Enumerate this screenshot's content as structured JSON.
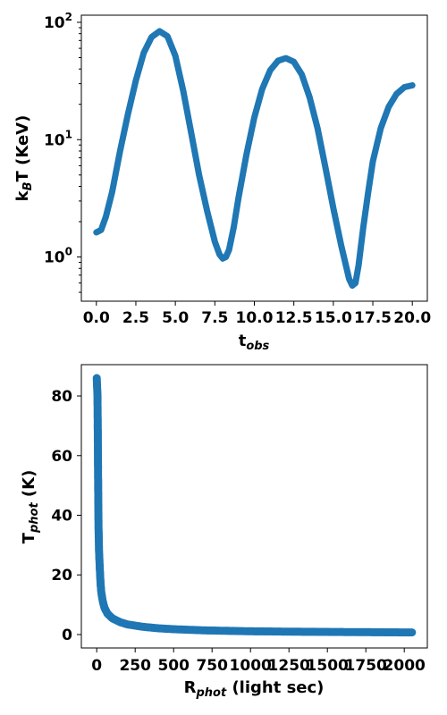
{
  "chart_data": [
    {
      "type": "line",
      "title": "",
      "xlabel_main": "t",
      "xlabel_sub": "obs",
      "ylabel_pre": "k",
      "ylabel_sub": "B",
      "ylabel_post": "T (KeV)",
      "yscale": "log",
      "xlim": [
        -0.95,
        20.95
      ],
      "ylim": [
        0.42,
        115
      ],
      "xticks": [
        {
          "value": 0.0,
          "label": "0.0"
        },
        {
          "value": 2.5,
          "label": "2.5"
        },
        {
          "value": 5.0,
          "label": "5.0"
        },
        {
          "value": 7.5,
          "label": "7.5"
        },
        {
          "value": 10.0,
          "label": "10.0"
        },
        {
          "value": 12.5,
          "label": "12.5"
        },
        {
          "value": 15.0,
          "label": "15.0"
        },
        {
          "value": 17.5,
          "label": "17.5"
        },
        {
          "value": 20.0,
          "label": "20.0"
        }
      ],
      "yticks": [
        {
          "value": 1,
          "base": "10",
          "exp": "0"
        },
        {
          "value": 10,
          "base": "10",
          "exp": "1"
        },
        {
          "value": 100,
          "base": "10",
          "exp": "2"
        }
      ],
      "color": "#1f77b4",
      "series": [
        {
          "x": [
            0.0,
            0.3,
            0.6,
            1.0,
            1.5,
            2.0,
            2.5,
            3.0,
            3.5,
            4.0,
            4.5,
            5.0,
            5.5,
            6.0,
            6.5,
            7.0,
            7.5,
            7.8,
            8.0,
            8.2,
            8.4,
            8.7,
            9.0,
            9.5,
            10.0,
            10.5,
            11.0,
            11.5,
            12.0,
            12.5,
            13.0,
            13.5,
            14.0,
            14.5,
            15.0,
            15.5,
            16.0,
            16.2,
            16.4,
            16.6,
            16.9,
            17.2,
            17.5,
            18.0,
            18.5,
            19.0,
            19.5,
            20.0
          ],
          "y": [
            1.62,
            1.7,
            2.2,
            3.6,
            8.0,
            16.5,
            32,
            55,
            75,
            84,
            76,
            52,
            26,
            11.5,
            5.0,
            2.5,
            1.35,
            1.05,
            0.97,
            1.0,
            1.15,
            1.8,
            3.2,
            7.5,
            15.5,
            27,
            39,
            47,
            49.5,
            46,
            36,
            23,
            12.5,
            5.8,
            2.6,
            1.25,
            0.65,
            0.57,
            0.6,
            0.85,
            1.8,
            3.5,
            6.5,
            12.5,
            19,
            24.5,
            28,
            29
          ]
        }
      ]
    },
    {
      "type": "scatter",
      "title": "",
      "xlabel_main": "R",
      "xlabel_sub": "phot",
      "xlabel_post": " (light sec)",
      "ylabel_main": "T",
      "ylabel_sub": "phot",
      "ylabel_post": " (K)",
      "xlim": [
        -100,
        2150
      ],
      "ylim": [
        -4.5,
        90.5
      ],
      "xticks": [
        0,
        250,
        500,
        750,
        1000,
        1250,
        1500,
        1750,
        2000
      ],
      "yticks": [
        0,
        20,
        40,
        60,
        80
      ],
      "color": "#1f77b4",
      "series": [
        {
          "x": [
            0,
            5,
            8,
            10,
            12,
            15,
            20,
            25,
            30,
            40,
            50,
            70,
            100,
            150,
            200,
            300,
            400,
            500,
            700,
            1000,
            1300,
            1600,
            1900,
            2050
          ],
          "y": [
            86,
            80,
            60,
            45,
            35,
            28,
            22,
            17,
            14,
            11,
            9,
            7,
            5.5,
            4.2,
            3.4,
            2.6,
            2.1,
            1.8,
            1.4,
            1.1,
            0.95,
            0.85,
            0.75,
            0.7
          ]
        }
      ]
    }
  ]
}
